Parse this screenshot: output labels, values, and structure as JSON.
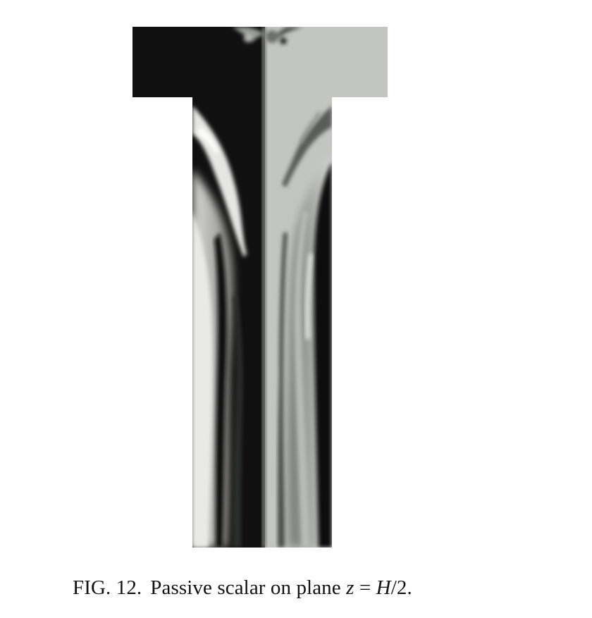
{
  "figure": {
    "caption_label": "FIG. 12.",
    "caption_text": "Passive scalar on plane ",
    "caption_var": "z",
    "caption_eq": " = ",
    "caption_rhs": "H",
    "caption_tail": "/2.",
    "colors": {
      "dark_fluid": "#101010",
      "light_fluid": "#c3c6c0",
      "background": "#ffffff"
    }
  }
}
